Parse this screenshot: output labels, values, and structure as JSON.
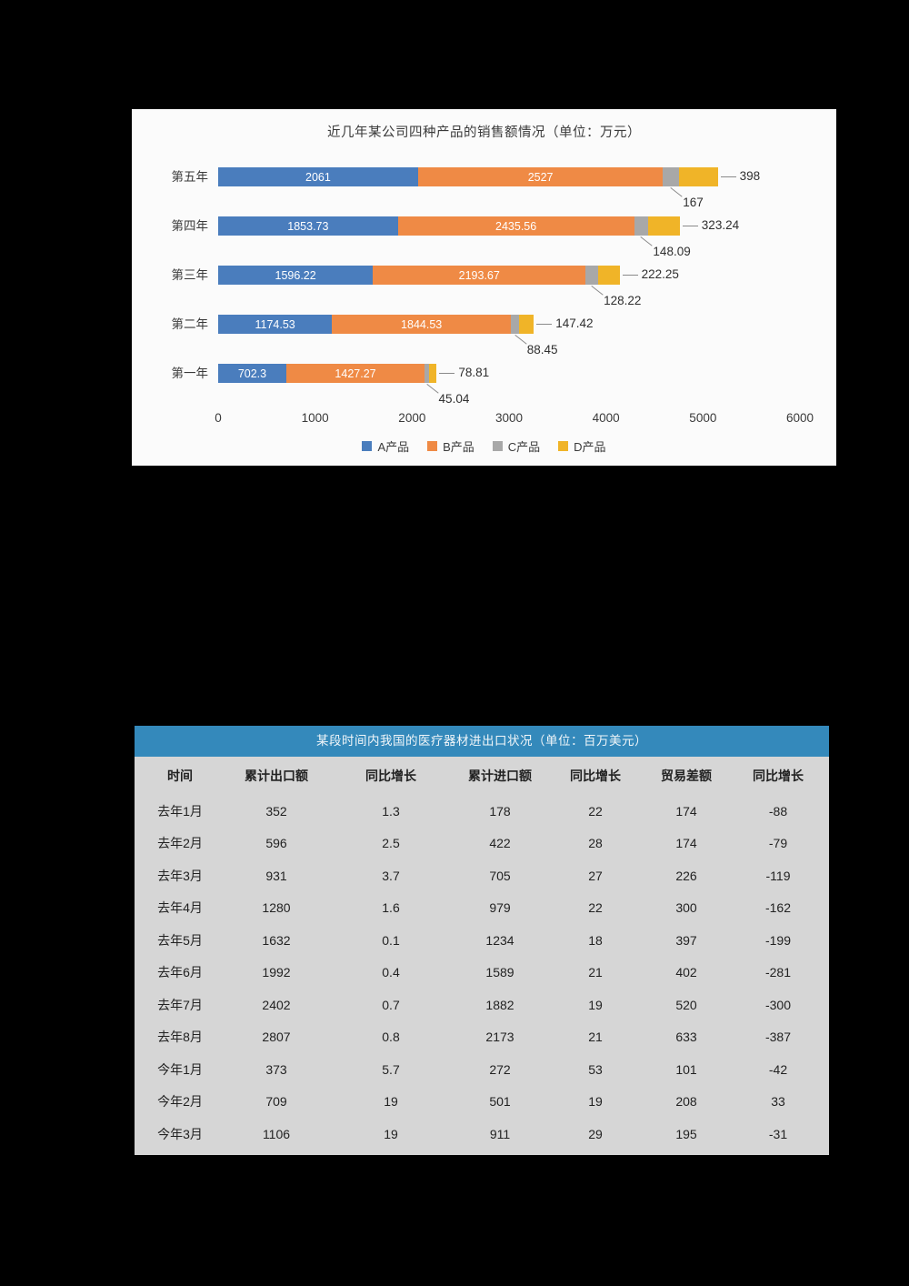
{
  "chart_data": [
    {
      "type": "bar",
      "orientation": "horizontal",
      "stacked": true,
      "title": "近几年某公司四种产品的销售额情况（单位：万元）",
      "categories": [
        "第五年",
        "第四年",
        "第三年",
        "第二年",
        "第一年"
      ],
      "series": [
        {
          "name": "A产品",
          "color": "#4a7dbd",
          "values": [
            2061,
            1853.73,
            1596.22,
            1174.53,
            702.3
          ]
        },
        {
          "name": "B产品",
          "color": "#ef8a45",
          "values": [
            2527,
            2435.56,
            2193.67,
            1844.53,
            1427.27
          ]
        },
        {
          "name": "C产品",
          "color": "#a8a8a8",
          "values": [
            167,
            148.09,
            128.22,
            88.45,
            45.04
          ]
        },
        {
          "name": "D产品",
          "color": "#f0b428",
          "values": [
            398,
            323.24,
            222.25,
            147.42,
            78.81
          ]
        }
      ],
      "xlim": [
        0,
        6000
      ],
      "x_ticks": [
        0,
        1000,
        2000,
        3000,
        4000,
        5000,
        6000
      ],
      "labels": {
        "in_bar_series": [
          "A产品",
          "B产品"
        ],
        "callout_below_series": "C产品",
        "callout_right_series": "D产品"
      },
      "grid": false,
      "legend_position": "bottom"
    },
    {
      "type": "table",
      "title": "某段时间内我国的医疗器材进出口状况（单位：百万美元）",
      "columns": [
        "时间",
        "累计出口额",
        "同比增长",
        "累计进口额",
        "同比增长",
        "贸易差额",
        "同比增长"
      ],
      "rows": [
        [
          "去年1月",
          "352",
          "1.3",
          "178",
          "22",
          "174",
          "-88"
        ],
        [
          "去年2月",
          "596",
          "2.5",
          "422",
          "28",
          "174",
          "-79"
        ],
        [
          "去年3月",
          "931",
          "3.7",
          "705",
          "27",
          "226",
          "-119"
        ],
        [
          "去年4月",
          "1280",
          "1.6",
          "979",
          "22",
          "300",
          "-162"
        ],
        [
          "去年5月",
          "1632",
          "0.1",
          "1234",
          "18",
          "397",
          "-199"
        ],
        [
          "去年6月",
          "1992",
          "0.4",
          "1589",
          "21",
          "402",
          "-281"
        ],
        [
          "去年7月",
          "2402",
          "0.7",
          "1882",
          "19",
          "520",
          "-300"
        ],
        [
          "去年8月",
          "2807",
          "0.8",
          "2173",
          "21",
          "633",
          "-387"
        ],
        [
          "今年1月",
          "373",
          "5.7",
          "272",
          "53",
          "101",
          "-42"
        ],
        [
          "今年2月",
          "709",
          "19",
          "501",
          "19",
          "208",
          "33"
        ],
        [
          "今年3月",
          "1106",
          "19",
          "911",
          "29",
          "195",
          "-31"
        ]
      ]
    }
  ]
}
